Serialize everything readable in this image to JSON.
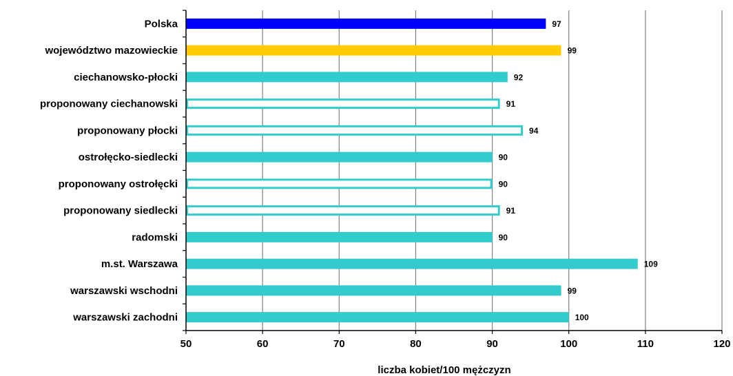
{
  "chart_data": {
    "type": "bar",
    "orientation": "horizontal",
    "categories": [
      "Polska",
      "województwo mazowieckie",
      "ciechanowsko-płocki",
      "proponowany ciechanowski",
      "proponowany płocki",
      "ostrołęcko-siedlecki",
      "proponowany ostrołęcki",
      "proponowany siedlecki",
      "radomski",
      "m.st. Warszawa",
      "warszawski wschodni",
      "warszawski zachodni"
    ],
    "values": [
      97,
      99,
      92,
      91,
      94,
      90,
      90,
      91,
      90,
      109,
      99,
      100
    ],
    "bar_styles": [
      "solid-blue",
      "solid-yellow",
      "solid-teal",
      "outline-teal",
      "outline-teal",
      "solid-teal",
      "outline-teal",
      "outline-teal",
      "solid-teal",
      "solid-teal",
      "solid-teal",
      "solid-teal"
    ],
    "xlabel": "liczba kobiet/100 mężczyzn",
    "xlim": [
      50,
      120
    ],
    "xticks": [
      50,
      60,
      70,
      80,
      90,
      100,
      110,
      120
    ],
    "grid": "vertical",
    "colors": {
      "blue": "#0000ff",
      "yellow": "#ffcc00",
      "teal": "#33cccc"
    }
  }
}
